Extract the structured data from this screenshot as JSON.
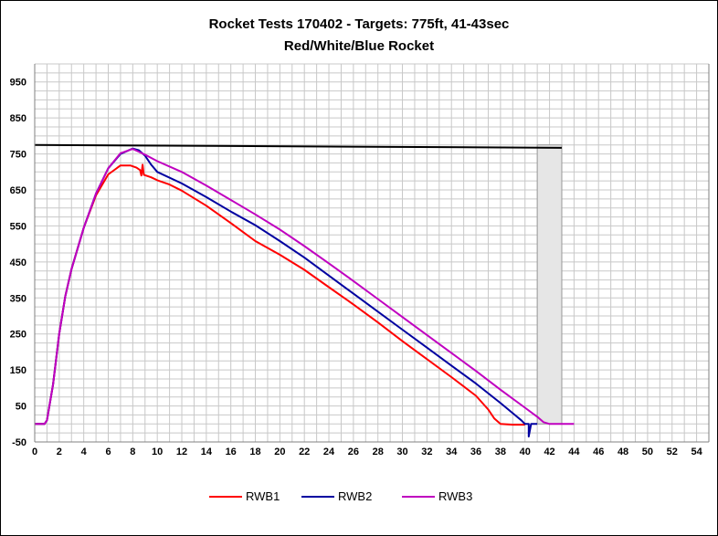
{
  "chart_data": {
    "type": "line",
    "title": "Rocket Tests 170402 - Targets: 775ft, 41-43sec",
    "subtitle": "Red/White/Blue Rocket",
    "xlabel": "",
    "ylabel": "",
    "xlim": [
      0,
      55
    ],
    "ylim": [
      -50,
      1000
    ],
    "x_ticks": [
      0,
      2,
      4,
      6,
      8,
      10,
      12,
      14,
      16,
      18,
      20,
      22,
      24,
      26,
      28,
      30,
      32,
      34,
      36,
      38,
      40,
      42,
      44,
      46,
      48,
      50,
      52,
      54
    ],
    "y_ticks": [
      -50,
      50,
      150,
      250,
      350,
      450,
      550,
      650,
      750,
      850,
      950
    ],
    "grid": true,
    "legend_position": "bottom",
    "target": {
      "altitude": 775,
      "time_window": [
        41,
        43
      ],
      "color": "#000000",
      "band_color": "#e6e6e6"
    },
    "series": [
      {
        "name": "RWB1",
        "color": "#ff0000",
        "points": [
          [
            0,
            0
          ],
          [
            0.8,
            0
          ],
          [
            1,
            10
          ],
          [
            1.5,
            110
          ],
          [
            2,
            250
          ],
          [
            2.5,
            355
          ],
          [
            3,
            430
          ],
          [
            4,
            545
          ],
          [
            5,
            635
          ],
          [
            6,
            693
          ],
          [
            7,
            718
          ],
          [
            7.8,
            718
          ],
          [
            8.3,
            712
          ],
          [
            8.6,
            705
          ],
          [
            8.7,
            690
          ],
          [
            8.8,
            720
          ],
          [
            8.9,
            692
          ],
          [
            9.5,
            685
          ],
          [
            10,
            677
          ],
          [
            11,
            665
          ],
          [
            12,
            648
          ],
          [
            14,
            606
          ],
          [
            16,
            558
          ],
          [
            18,
            508
          ],
          [
            20,
            470
          ],
          [
            22,
            428
          ],
          [
            24,
            380
          ],
          [
            26,
            332
          ],
          [
            28,
            282
          ],
          [
            30,
            230
          ],
          [
            32,
            180
          ],
          [
            34,
            130
          ],
          [
            36,
            78
          ],
          [
            37,
            40
          ],
          [
            37.5,
            15
          ],
          [
            38,
            0
          ],
          [
            39,
            -2
          ],
          [
            40,
            -2
          ]
        ]
      },
      {
        "name": "RWB2",
        "color": "#0000a0",
        "points": [
          [
            0,
            0
          ],
          [
            0.8,
            0
          ],
          [
            1,
            10
          ],
          [
            1.5,
            110
          ],
          [
            2,
            250
          ],
          [
            2.5,
            355
          ],
          [
            3,
            430
          ],
          [
            4,
            545
          ],
          [
            5,
            640
          ],
          [
            6,
            710
          ],
          [
            7,
            750
          ],
          [
            8,
            765
          ],
          [
            8.5,
            760
          ],
          [
            9,
            745
          ],
          [
            9.5,
            720
          ],
          [
            10,
            700
          ],
          [
            12,
            668
          ],
          [
            14,
            630
          ],
          [
            16,
            590
          ],
          [
            18,
            552
          ],
          [
            20,
            508
          ],
          [
            22,
            462
          ],
          [
            24,
            412
          ],
          [
            26,
            362
          ],
          [
            28,
            312
          ],
          [
            30,
            262
          ],
          [
            32,
            212
          ],
          [
            34,
            162
          ],
          [
            36,
            112
          ],
          [
            38,
            58
          ],
          [
            39,
            30
          ],
          [
            39.7,
            10
          ],
          [
            40,
            0
          ],
          [
            40.3,
            0
          ],
          [
            40.3,
            -35
          ],
          [
            40.5,
            0
          ],
          [
            41,
            0
          ]
        ]
      },
      {
        "name": "RWB3",
        "color": "#c000c0",
        "points": [
          [
            0,
            0
          ],
          [
            0.8,
            0
          ],
          [
            1,
            10
          ],
          [
            1.5,
            110
          ],
          [
            2,
            250
          ],
          [
            2.5,
            355
          ],
          [
            3,
            430
          ],
          [
            4,
            545
          ],
          [
            5,
            640
          ],
          [
            6,
            710
          ],
          [
            7,
            752
          ],
          [
            8,
            764
          ],
          [
            9,
            748
          ],
          [
            10,
            730
          ],
          [
            12,
            700
          ],
          [
            14,
            662
          ],
          [
            16,
            622
          ],
          [
            18,
            582
          ],
          [
            20,
            540
          ],
          [
            22,
            494
          ],
          [
            24,
            446
          ],
          [
            26,
            397
          ],
          [
            28,
            347
          ],
          [
            30,
            297
          ],
          [
            32,
            247
          ],
          [
            34,
            197
          ],
          [
            36,
            147
          ],
          [
            38,
            95
          ],
          [
            40,
            45
          ],
          [
            41,
            20
          ],
          [
            41.5,
            5
          ],
          [
            42,
            0
          ],
          [
            44,
            0
          ]
        ]
      }
    ]
  }
}
